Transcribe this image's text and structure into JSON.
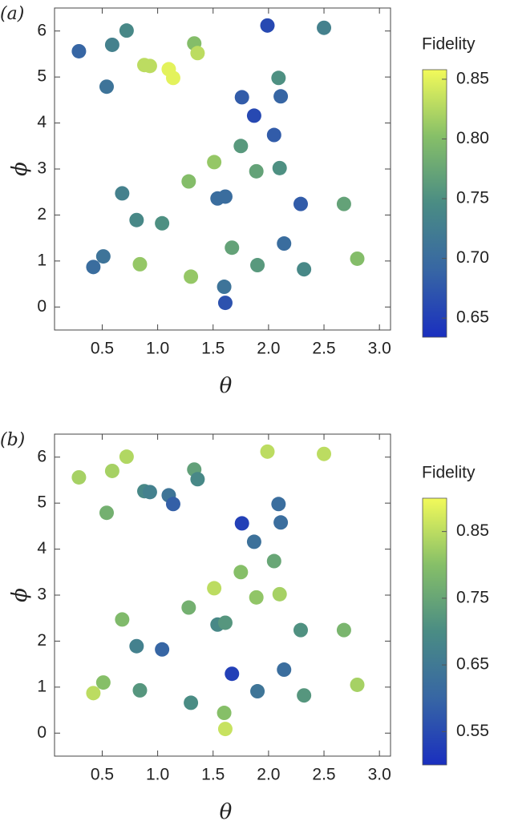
{
  "chart_data": [
    {
      "type": "scatter",
      "panel_label": "(a)",
      "xlabel": "θ",
      "ylabel": "ϕ",
      "xlim": [
        0.07,
        3.1
      ],
      "ylim": [
        -0.5,
        6.5
      ],
      "xticks": [
        0.5,
        {
          "value": 1,
          "label": "1.0"
        },
        1.5,
        {
          "value": 2,
          "label": "2.0"
        },
        2.5,
        {
          "value": 3,
          "label": "3.0"
        }
      ],
      "yticks": [
        0,
        1,
        2,
        3,
        4,
        5,
        6
      ],
      "x": [
        0.29,
        0.59,
        0.72,
        0.54,
        0.88,
        0.93,
        1.1,
        1.14,
        1.33,
        1.36,
        1.99,
        2.5,
        1.76,
        2.09,
        2.11,
        1.87,
        2.05,
        1.75,
        1.51,
        1.89,
        2.1,
        1.28,
        0.68,
        1.54,
        1.61,
        2.29,
        2.68,
        0.81,
        1.04,
        1.67,
        2.14,
        0.42,
        0.51,
        0.84,
        1.9,
        2.32,
        2.8,
        1.3,
        1.6,
        1.61
      ],
      "y": [
        5.56,
        5.7,
        6.01,
        4.79,
        5.26,
        5.24,
        5.17,
        4.98,
        5.73,
        5.52,
        6.12,
        6.07,
        4.56,
        4.98,
        4.58,
        4.16,
        3.74,
        3.5,
        3.15,
        2.95,
        3.02,
        2.73,
        2.47,
        2.36,
        2.4,
        2.24,
        2.24,
        1.89,
        1.82,
        1.29,
        1.38,
        0.87,
        1.1,
        0.93,
        0.91,
        0.82,
        1.05,
        0.66,
        0.44,
        0.09
      ],
      "fidelity": [
        0.69,
        0.73,
        0.74,
        0.71,
        0.83,
        0.83,
        0.85,
        0.85,
        0.8,
        0.83,
        0.66,
        0.73,
        0.68,
        0.75,
        0.69,
        0.66,
        0.68,
        0.76,
        0.81,
        0.77,
        0.75,
        0.8,
        0.73,
        0.7,
        0.7,
        0.68,
        0.77,
        0.74,
        0.75,
        0.77,
        0.7,
        0.7,
        0.71,
        0.81,
        0.76,
        0.74,
        0.8,
        0.81,
        0.71,
        0.67
      ],
      "colorbar": {
        "label": "Fidelity",
        "lim": [
          0.634,
          0.858
        ],
        "ticks": [
          0.65,
          {
            "value": 0.7,
            "label": "0.70"
          },
          0.75,
          {
            "value": 0.8,
            "label": "0.80"
          },
          0.85
        ]
      },
      "colormap": [
        "#1a2fbf",
        "#3766a4",
        "#4a8c84",
        "#86bf68",
        "#f2fa5a"
      ]
    },
    {
      "type": "scatter",
      "panel_label": "(b)",
      "xlabel": "θ",
      "ylabel": "ϕ",
      "xlim": [
        0.07,
        3.1
      ],
      "ylim": [
        -0.5,
        6.5
      ],
      "xticks": [
        0.5,
        {
          "value": 1,
          "label": "1.0"
        },
        1.5,
        {
          "value": 2,
          "label": "2.0"
        },
        2.5,
        {
          "value": 3,
          "label": "3.0"
        }
      ],
      "yticks": [
        0,
        1,
        2,
        3,
        4,
        5,
        6
      ],
      "x": [
        0.29,
        0.59,
        0.72,
        0.54,
        0.88,
        0.93,
        1.1,
        1.14,
        1.33,
        1.36,
        1.99,
        2.5,
        1.76,
        2.09,
        2.11,
        1.87,
        2.05,
        1.75,
        1.51,
        1.89,
        2.1,
        1.28,
        0.68,
        1.54,
        1.61,
        2.29,
        2.68,
        0.81,
        1.04,
        1.67,
        2.14,
        0.42,
        0.51,
        0.84,
        1.9,
        2.32,
        2.8,
        1.3,
        1.6,
        1.61
      ],
      "y": [
        5.56,
        5.7,
        6.01,
        4.79,
        5.26,
        5.24,
        5.17,
        4.98,
        5.73,
        5.52,
        6.12,
        6.07,
        4.56,
        4.98,
        4.58,
        4.16,
        3.74,
        3.5,
        3.15,
        2.95,
        3.02,
        2.73,
        2.47,
        2.36,
        2.4,
        2.24,
        2.24,
        1.89,
        1.82,
        1.29,
        1.38,
        0.87,
        1.1,
        0.93,
        0.91,
        0.82,
        1.05,
        0.66,
        0.44,
        0.09
      ],
      "fidelity": [
        0.83,
        0.83,
        0.84,
        0.77,
        0.69,
        0.67,
        0.64,
        0.59,
        0.74,
        0.69,
        0.85,
        0.85,
        0.53,
        0.62,
        0.62,
        0.63,
        0.75,
        0.8,
        0.85,
        0.81,
        0.83,
        0.77,
        0.79,
        0.69,
        0.72,
        0.71,
        0.78,
        0.67,
        0.6,
        0.53,
        0.62,
        0.85,
        0.8,
        0.72,
        0.64,
        0.72,
        0.83,
        0.7,
        0.8,
        0.86
      ],
      "colorbar": {
        "label": "Fidelity",
        "lim": [
          0.5,
          0.9
        ],
        "ticks": [
          0.55,
          0.65,
          0.75,
          0.85
        ]
      },
      "colormap": [
        "#1a2fbf",
        "#3766a4",
        "#4a8c84",
        "#86bf68",
        "#f2fa5a"
      ]
    }
  ]
}
